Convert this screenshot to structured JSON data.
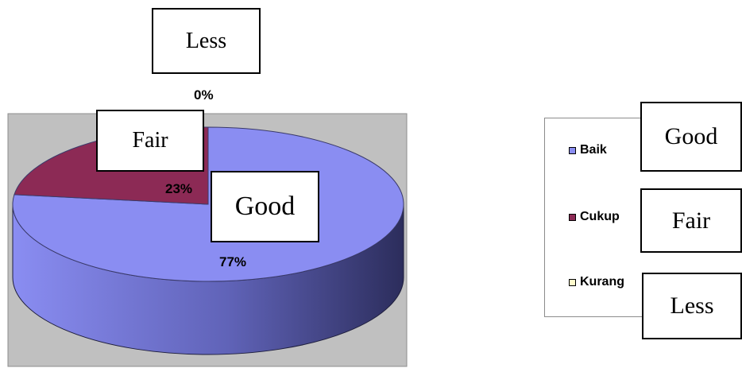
{
  "chart_data": {
    "type": "pie",
    "style": "3d",
    "slices": [
      {
        "label": "Baik",
        "value": 77,
        "display": "77%",
        "color": "#8a8df2",
        "callout": "Good"
      },
      {
        "label": "Cukup",
        "value": 23,
        "display": "23%",
        "color": "#8c2a55",
        "callout": "Fair"
      },
      {
        "label": "Kurang",
        "value": 0,
        "display": "0%",
        "color": "#fffbcc",
        "callout": "Less"
      }
    ],
    "legend": {
      "placement": "right",
      "entries": [
        "Baik",
        "Cukup",
        "Kurang"
      ],
      "callouts": [
        "Good",
        "Fair",
        "Less"
      ]
    },
    "plot_area_color": "#c0c0c0"
  }
}
